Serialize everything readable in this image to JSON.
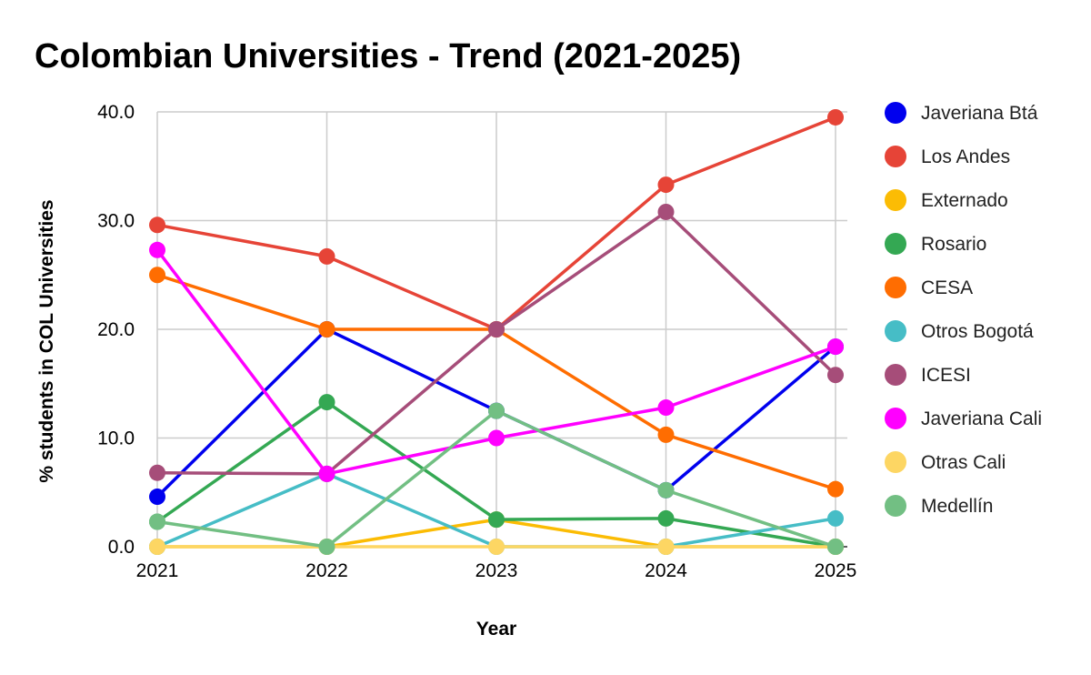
{
  "chart_data": {
    "type": "line",
    "title": "Colombian Universities - Trend (2021-2025)",
    "xlabel": "Year",
    "ylabel": "% students in COL Universities",
    "x": [
      "2021",
      "2022",
      "2023",
      "2024",
      "2025"
    ],
    "ylim": [
      0,
      40
    ],
    "yticks": [
      "0.0",
      "10.0",
      "20.0",
      "30.0",
      "40.0"
    ],
    "grid": true,
    "legend_position": "right",
    "series": [
      {
        "name": "Javeriana Btá",
        "color": "#0000ee",
        "values": [
          4.6,
          20.0,
          12.5,
          5.2,
          18.4
        ]
      },
      {
        "name": "Los Andes",
        "color": "#e64437",
        "values": [
          29.6,
          26.7,
          20.0,
          33.3,
          39.5
        ]
      },
      {
        "name": "Externado",
        "color": "#fbbc04",
        "values": [
          0.0,
          0.0,
          2.5,
          0.0,
          0.0
        ]
      },
      {
        "name": "Rosario",
        "color": "#34a853",
        "values": [
          2.3,
          13.3,
          2.5,
          2.6,
          0.0
        ]
      },
      {
        "name": "CESA",
        "color": "#ff6d01",
        "values": [
          25.0,
          20.0,
          20.0,
          10.3,
          5.3
        ]
      },
      {
        "name": "Otros Bogotá",
        "color": "#46bdc6",
        "values": [
          0.0,
          6.7,
          0.0,
          0.0,
          2.6
        ]
      },
      {
        "name": "ICESI",
        "color": "#a64d79",
        "values": [
          6.8,
          6.7,
          20.0,
          30.8,
          15.8
        ]
      },
      {
        "name": "Javeriana Cali",
        "color": "#ff00ff",
        "values": [
          27.3,
          6.7,
          10.0,
          12.8,
          18.4
        ]
      },
      {
        "name": "Otras Cali",
        "color": "#fdd663",
        "values": [
          0.0,
          0.0,
          0.0,
          0.0,
          0.0
        ]
      },
      {
        "name": "Medellín",
        "color": "#72bf83",
        "values": [
          2.3,
          0.0,
          12.5,
          5.2,
          0.0
        ]
      }
    ]
  }
}
